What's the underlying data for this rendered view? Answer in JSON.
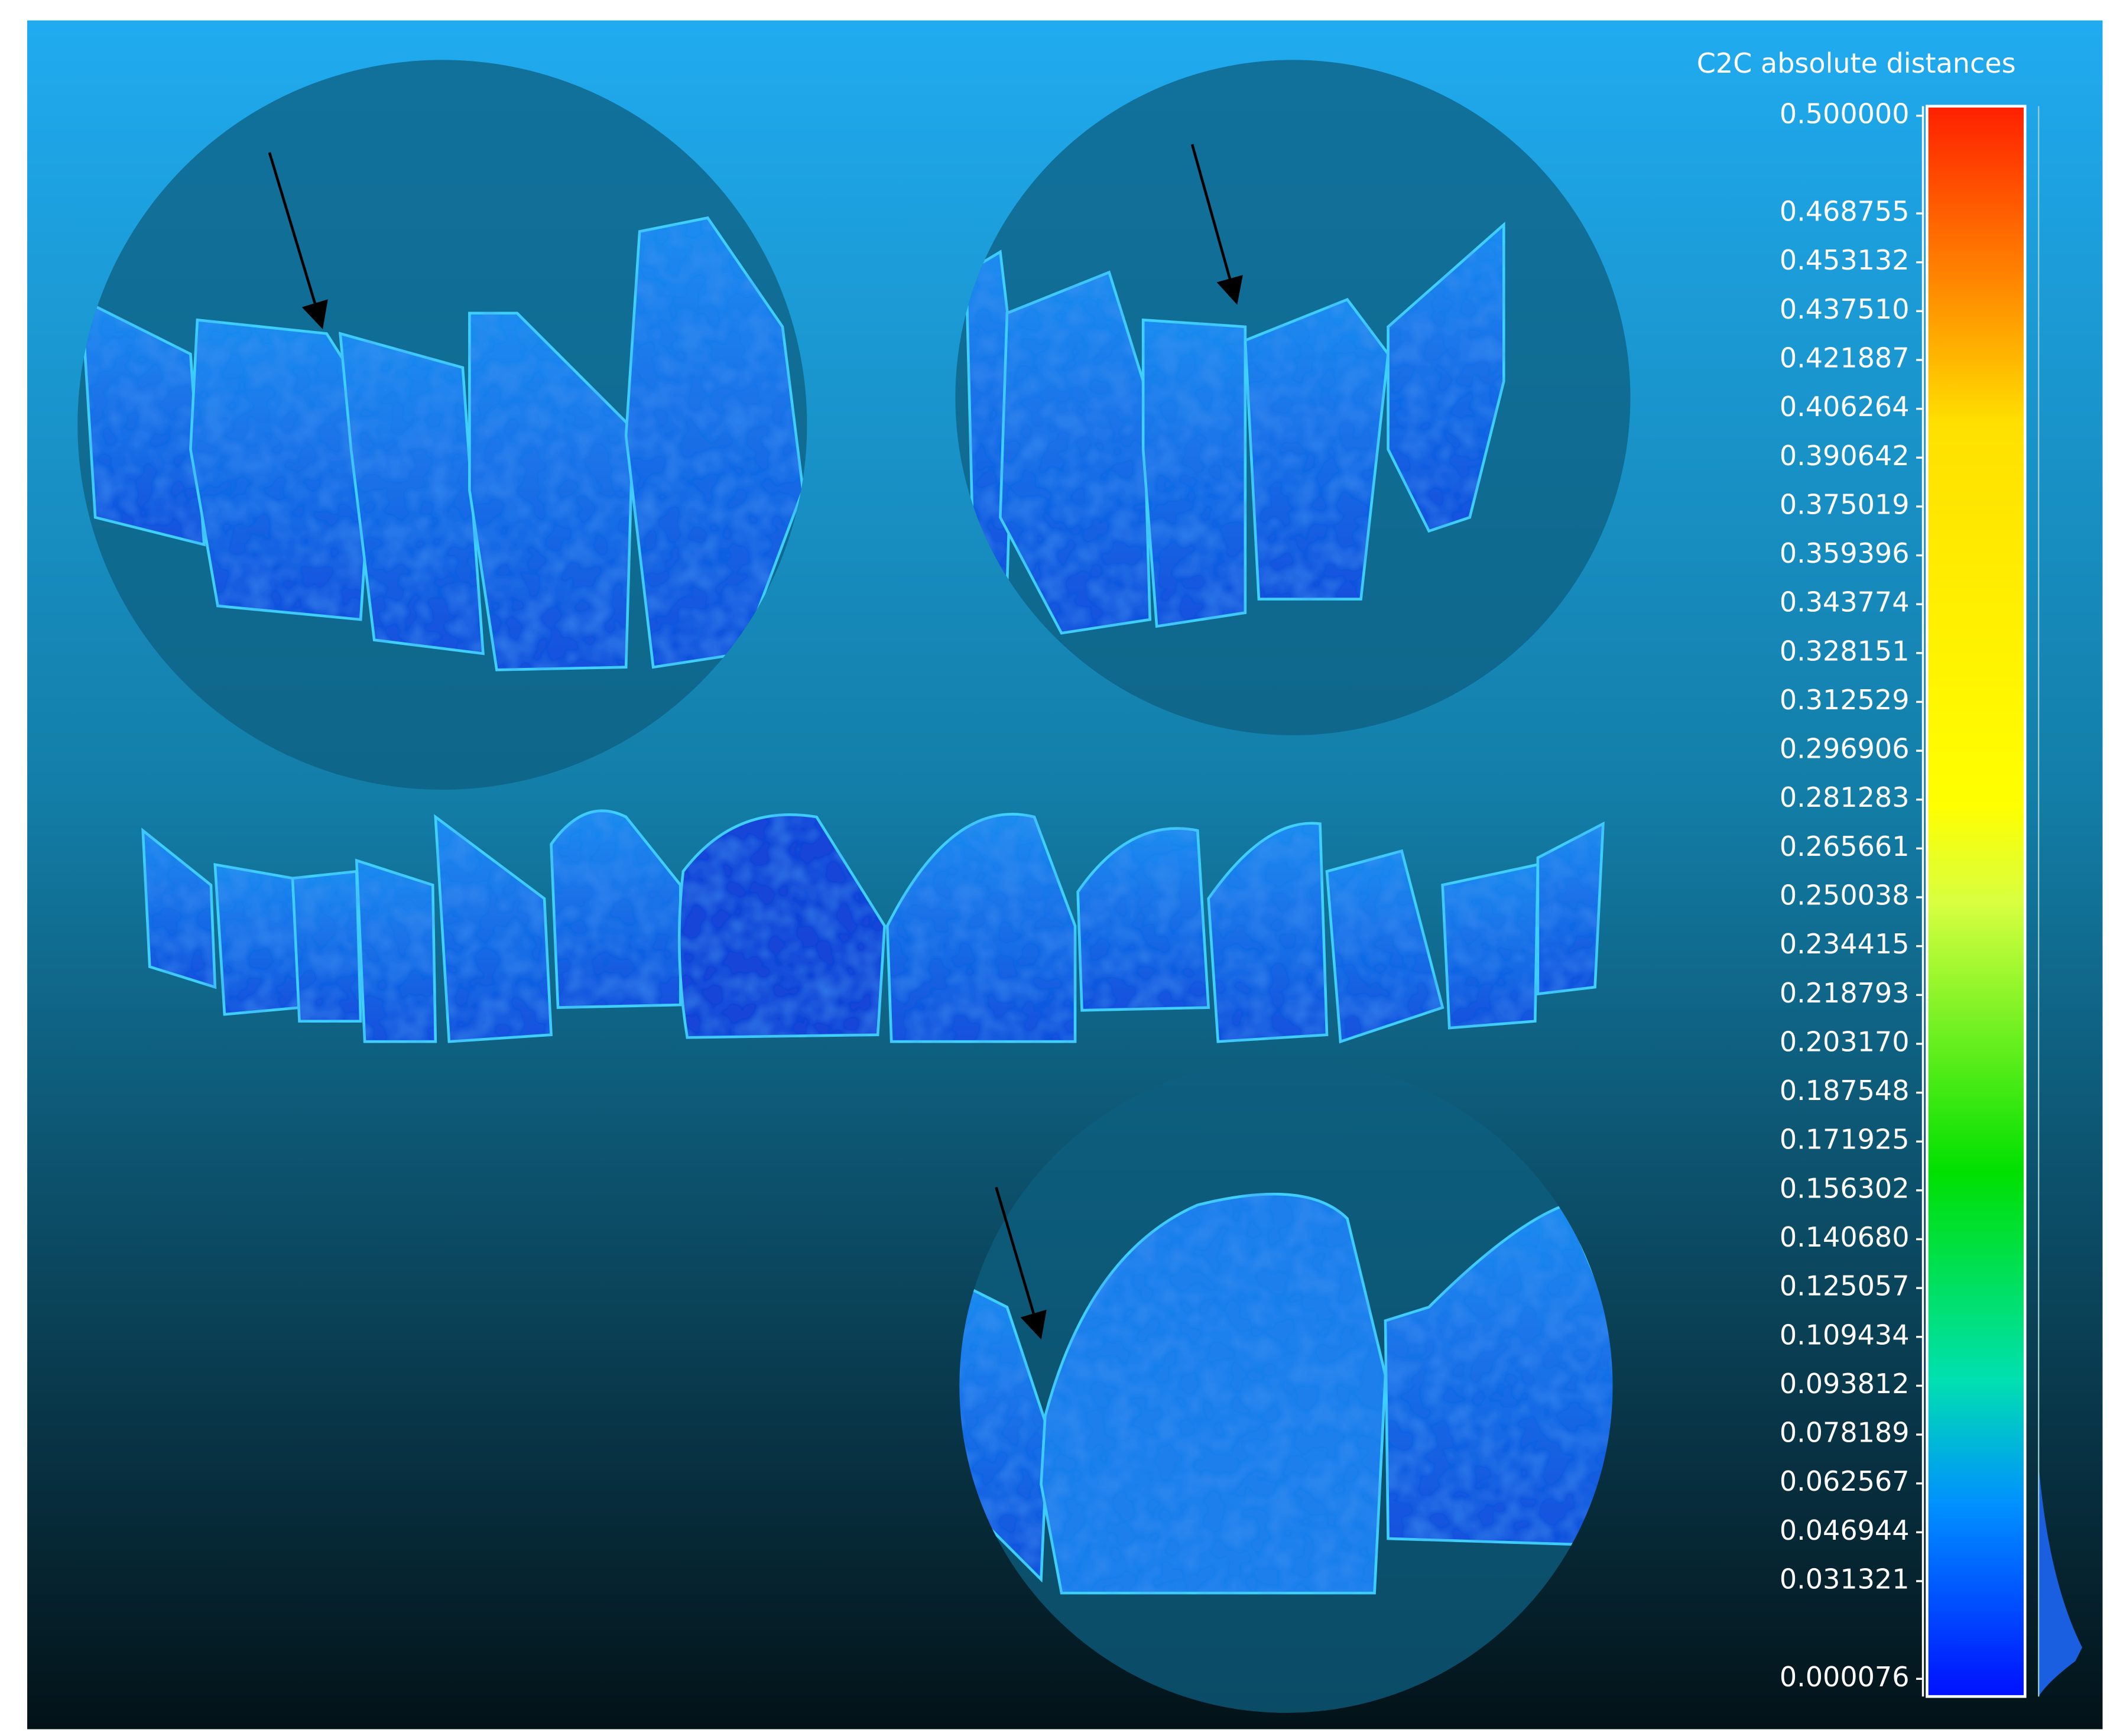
{
  "color_scale": {
    "title": "C2C absolute distances",
    "ticks": [
      {
        "value": 0.5,
        "label": "0.500000"
      },
      {
        "value": 0.468755,
        "label": "0.468755"
      },
      {
        "value": 0.453132,
        "label": "0.453132"
      },
      {
        "value": 0.43751,
        "label": "0.437510"
      },
      {
        "value": 0.421887,
        "label": "0.421887"
      },
      {
        "value": 0.406264,
        "label": "0.406264"
      },
      {
        "value": 0.390642,
        "label": "0.390642"
      },
      {
        "value": 0.375019,
        "label": "0.375019"
      },
      {
        "value": 0.359396,
        "label": "0.359396"
      },
      {
        "value": 0.343774,
        "label": "0.343774"
      },
      {
        "value": 0.328151,
        "label": "0.328151"
      },
      {
        "value": 0.312529,
        "label": "0.312529"
      },
      {
        "value": 0.296906,
        "label": "0.296906"
      },
      {
        "value": 0.281283,
        "label": "0.281283"
      },
      {
        "value": 0.265661,
        "label": "0.265661"
      },
      {
        "value": 0.250038,
        "label": "0.250038"
      },
      {
        "value": 0.234415,
        "label": "0.234415"
      },
      {
        "value": 0.218793,
        "label": "0.218793"
      },
      {
        "value": 0.20317,
        "label": "0.203170"
      },
      {
        "value": 0.187548,
        "label": "0.187548"
      },
      {
        "value": 0.171925,
        "label": "0.171925"
      },
      {
        "value": 0.156302,
        "label": "0.156302"
      },
      {
        "value": 0.14068,
        "label": "0.140680"
      },
      {
        "value": 0.125057,
        "label": "0.125057"
      },
      {
        "value": 0.109434,
        "label": "0.109434"
      },
      {
        "value": 0.093812,
        "label": "0.093812"
      },
      {
        "value": 0.078189,
        "label": "0.078189"
      },
      {
        "value": 0.062567,
        "label": "0.062567"
      },
      {
        "value": 0.046944,
        "label": "0.046944"
      },
      {
        "value": 0.031321,
        "label": "0.031321"
      },
      {
        "value": 7.6e-05,
        "label": "0.000076"
      }
    ]
  }
}
